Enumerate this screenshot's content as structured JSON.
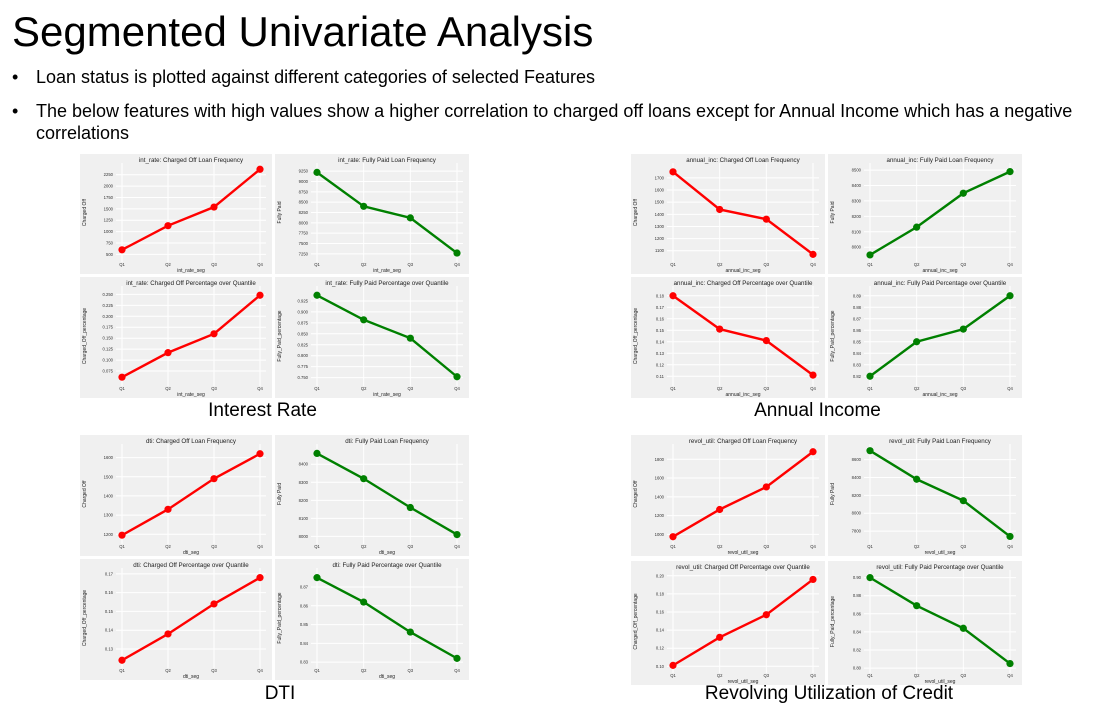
{
  "slide": {
    "title": "Segmented Univariate Analysis",
    "bullets": [
      "Loan status is plotted against different categories of selected Features",
      "The below features with high values show a higher correlation to charged off loans except for Annual Income which has a negative correlations"
    ]
  },
  "groups": [
    {
      "label": "Interest Rate"
    },
    {
      "label": "Annual Income"
    },
    {
      "label": "DTI"
    },
    {
      "label": "Revolving Utilization of Credit"
    }
  ],
  "colors": {
    "charged_off": "#ff0000",
    "fully_paid": "#008000",
    "panel_bg": "#f0f0f0",
    "grid": "#ffffff"
  },
  "chart_data": [
    {
      "type": "line",
      "title": "int_rate: Charged Off Loan Frequency",
      "xlabel": "int_rate_seg",
      "ylabel": "Charged Off",
      "categories": [
        "Q1",
        "Q2",
        "Q3",
        "Q4"
      ],
      "values": [
        600,
        1130,
        1540,
        2370
      ],
      "ylim": [
        420,
        2420
      ],
      "yticks": [
        "500",
        "750",
        "1000",
        "1250",
        "1500",
        "1750",
        "2000",
        "2250"
      ],
      "color": "#ff0000",
      "grid": true
    },
    {
      "type": "line",
      "title": "int_rate: Fully Paid Loan Frequency",
      "xlabel": "int_rate_seg",
      "ylabel": "Fully Paid",
      "categories": [
        "Q1",
        "Q2",
        "Q3",
        "Q4"
      ],
      "values": [
        9220,
        8400,
        8120,
        7270
      ],
      "ylim": [
        7150,
        9350
      ],
      "yticks": [
        "7250",
        "7500",
        "7750",
        "8000",
        "8250",
        "8500",
        "8750",
        "9000",
        "9250"
      ],
      "color": "#008000",
      "grid": true
    },
    {
      "type": "line",
      "title": "int_rate: Charged Off Percentage over Quantile",
      "xlabel": "int_rate_seg",
      "ylabel": "Charged_Off_percentage",
      "categories": [
        "Q1",
        "Q2",
        "Q3",
        "Q4"
      ],
      "values": [
        0.061,
        0.117,
        0.16,
        0.248
      ],
      "ylim": [
        0.05,
        0.26
      ],
      "yticks": [
        "0.075",
        "0.100",
        "0.125",
        "0.150",
        "0.175",
        "0.200",
        "0.225",
        "0.250"
      ],
      "color": "#ff0000",
      "grid": true
    },
    {
      "type": "line",
      "title": "int_rate: Fully Paid Percentage over Quantile",
      "xlabel": "int_rate_seg",
      "ylabel": "Fully_Paid_percentage",
      "categories": [
        "Q1",
        "Q2",
        "Q3",
        "Q4"
      ],
      "values": [
        0.938,
        0.882,
        0.84,
        0.752
      ],
      "ylim": [
        0.74,
        0.95
      ],
      "yticks": [
        "0.750",
        "0.775",
        "0.800",
        "0.825",
        "0.850",
        "0.875",
        "0.900",
        "0.925"
      ],
      "color": "#008000",
      "grid": true
    },
    {
      "type": "line",
      "title": "annual_inc: Charged Off Loan Frequency",
      "xlabel": "annual_inc_seg",
      "ylabel": "Charged Off",
      "categories": [
        "Q1",
        "Q2",
        "Q3",
        "Q4"
      ],
      "values": [
        1750,
        1440,
        1360,
        1070
      ],
      "ylim": [
        1040,
        1790
      ],
      "yticks": [
        "1100",
        "1200",
        "1300",
        "1400",
        "1500",
        "1600",
        "1700"
      ],
      "color": "#ff0000",
      "grid": true
    },
    {
      "type": "line",
      "title": "annual_inc: Fully Paid Loan Frequency",
      "xlabel": "annual_inc_seg",
      "ylabel": "Fully Paid",
      "categories": [
        "Q1",
        "Q2",
        "Q3",
        "Q4"
      ],
      "values": [
        7950,
        8130,
        8350,
        8490
      ],
      "ylim": [
        7930,
        8520
      ],
      "yticks": [
        "8000",
        "8100",
        "8200",
        "8300",
        "8400",
        "8500"
      ],
      "color": "#008000",
      "grid": true
    },
    {
      "type": "line",
      "title": "annual_inc: Charged Off Percentage over Quantile",
      "xlabel": "annual_inc_seg",
      "ylabel": "Charged_Off_percentage",
      "categories": [
        "Q1",
        "Q2",
        "Q3",
        "Q4"
      ],
      "values": [
        0.18,
        0.151,
        0.141,
        0.111
      ],
      "ylim": [
        0.105,
        0.185
      ],
      "yticks": [
        "0.11",
        "0.12",
        "0.13",
        "0.14",
        "0.15",
        "0.16",
        "0.17",
        "0.18"
      ],
      "color": "#ff0000",
      "grid": true
    },
    {
      "type": "line",
      "title": "annual_inc: Fully Paid Percentage over Quantile",
      "xlabel": "annual_inc_seg",
      "ylabel": "Fully_Paid_percentage",
      "categories": [
        "Q1",
        "Q2",
        "Q3",
        "Q4"
      ],
      "values": [
        0.82,
        0.85,
        0.861,
        0.89
      ],
      "ylim": [
        0.815,
        0.895
      ],
      "yticks": [
        "0.82",
        "0.83",
        "0.84",
        "0.85",
        "0.86",
        "0.87",
        "0.88",
        "0.89"
      ],
      "color": "#008000",
      "grid": true
    },
    {
      "type": "line",
      "title": "dti: Charged Off Loan Frequency",
      "xlabel": "dti_seg",
      "ylabel": "Charged Off",
      "categories": [
        "Q1",
        "Q2",
        "Q3",
        "Q4"
      ],
      "values": [
        1195,
        1330,
        1490,
        1620
      ],
      "ylim": [
        1170,
        1650
      ],
      "yticks": [
        "1200",
        "1300",
        "1400",
        "1500",
        "1600"
      ],
      "color": "#ff0000",
      "grid": true
    },
    {
      "type": "line",
      "title": "dti: Fully Paid Loan Frequency",
      "xlabel": "dti_seg",
      "ylabel": "Fully Paid",
      "categories": [
        "Q1",
        "Q2",
        "Q3",
        "Q4"
      ],
      "values": [
        8460,
        8320,
        8160,
        8010
      ],
      "ylim": [
        7980,
        8490
      ],
      "yticks": [
        "8000",
        "8100",
        "8200",
        "8300",
        "8400"
      ],
      "color": "#008000",
      "grid": true
    },
    {
      "type": "line",
      "title": "dti: Charged Off Percentage over Quantile",
      "xlabel": "dti_seg",
      "ylabel": "Charged_Off_percentage",
      "categories": [
        "Q1",
        "Q2",
        "Q3",
        "Q4"
      ],
      "values": [
        0.124,
        0.138,
        0.154,
        0.168
      ],
      "ylim": [
        0.122,
        0.171
      ],
      "yticks": [
        "0.13",
        "0.14",
        "0.15",
        "0.16",
        "0.17"
      ],
      "color": "#ff0000",
      "grid": true
    },
    {
      "type": "line",
      "title": "dti: Fully Paid Percentage over Quantile",
      "xlabel": "dti_seg",
      "ylabel": "Fully_Paid_percentage",
      "categories": [
        "Q1",
        "Q2",
        "Q3",
        "Q4"
      ],
      "values": [
        0.875,
        0.862,
        0.846,
        0.832
      ],
      "ylim": [
        0.829,
        0.878
      ],
      "yticks": [
        "0.83",
        "0.84",
        "0.85",
        "0.86",
        "0.87"
      ],
      "color": "#008000",
      "grid": true
    },
    {
      "type": "line",
      "title": "revol_util: Charged Off Loan Frequency",
      "xlabel": "revol_util_seg",
      "ylabel": "Charged Off",
      "categories": [
        "Q1",
        "Q2",
        "Q3",
        "Q4"
      ],
      "values": [
        975,
        1265,
        1505,
        1880
      ],
      "ylim": [
        940,
        1920
      ],
      "yticks": [
        "1000",
        "1200",
        "1400",
        "1600",
        "1800"
      ],
      "color": "#ff0000",
      "grid": true
    },
    {
      "type": "line",
      "title": "revol_util: Fully Paid Loan Frequency",
      "xlabel": "revol_util_seg",
      "ylabel": "Fully Paid",
      "categories": [
        "Q1",
        "Q2",
        "Q3",
        "Q4"
      ],
      "values": [
        8700,
        8380,
        8140,
        7740
      ],
      "ylim": [
        7700,
        8730
      ],
      "yticks": [
        "7800",
        "8000",
        "8200",
        "8400",
        "8600"
      ],
      "color": "#008000",
      "grid": true
    },
    {
      "type": "line",
      "title": "revol_util: Charged Off Percentage over Quantile",
      "xlabel": "revol_util_seg",
      "ylabel": "Charged_Off_percentage",
      "categories": [
        "Q1",
        "Q2",
        "Q3",
        "Q4"
      ],
      "values": [
        0.101,
        0.132,
        0.157,
        0.196
      ],
      "ylim": [
        0.097,
        0.202
      ],
      "yticks": [
        "0.10",
        "0.12",
        "0.14",
        "0.16",
        "0.18",
        "0.20"
      ],
      "color": "#ff0000",
      "grid": true
    },
    {
      "type": "line",
      "title": "revol_util: Fully Paid Percentage over Quantile",
      "xlabel": "revol_util_seg",
      "ylabel": "Fully_Paid_percentage",
      "categories": [
        "Q1",
        "Q2",
        "Q3",
        "Q4"
      ],
      "values": [
        0.9,
        0.869,
        0.844,
        0.805
      ],
      "ylim": [
        0.799,
        0.904
      ],
      "yticks": [
        "0.80",
        "0.82",
        "0.84",
        "0.86",
        "0.88",
        "0.90"
      ],
      "color": "#008000",
      "grid": true
    }
  ]
}
